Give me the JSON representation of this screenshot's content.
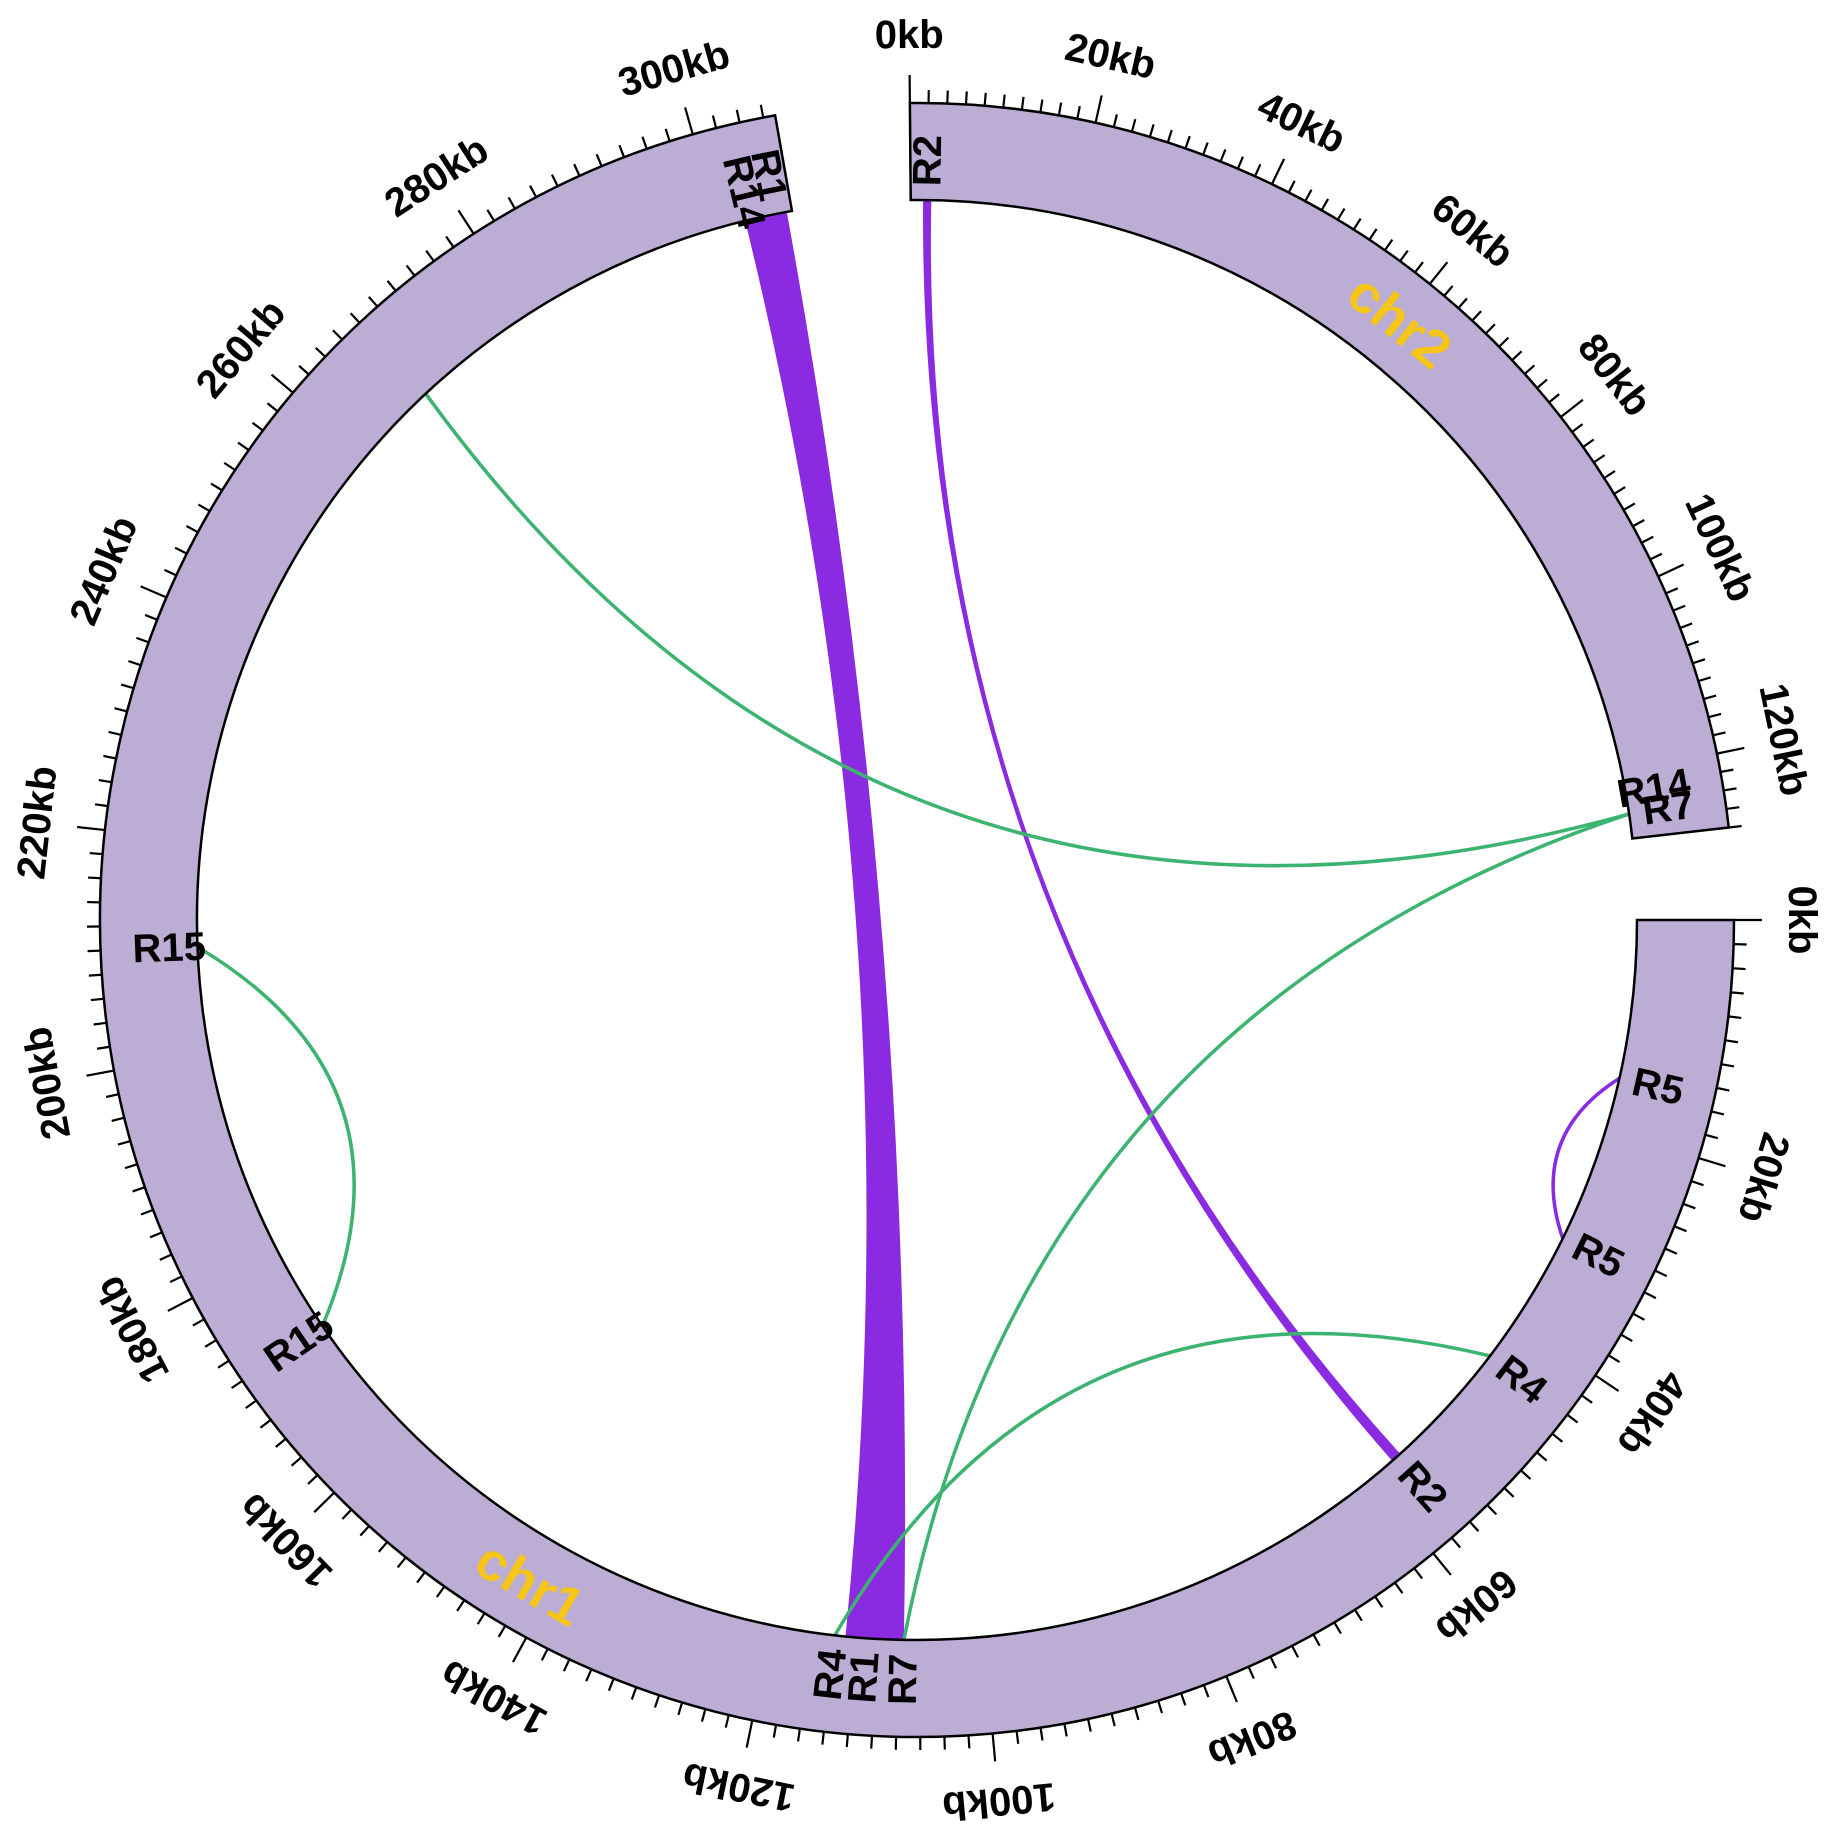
{
  "colors": {
    "segment_fill": "#bbadd3",
    "chrom_label": "#f5c518",
    "purple_link": "#8a2be2",
    "green_link": "#3cb371"
  },
  "chromosomes": [
    {
      "id": "chr1",
      "label": "chr1",
      "length_kb": 307,
      "ticks_kb": [
        0,
        20,
        40,
        60,
        80,
        100,
        120,
        140,
        160,
        180,
        200,
        220,
        240,
        260,
        280,
        300
      ]
    },
    {
      "id": "chr2",
      "label": "chr2",
      "length_kb": 128,
      "ticks_kb": [
        0,
        20,
        40,
        60,
        80,
        100,
        120
      ]
    }
  ],
  "tick_suffix": "kb",
  "regions": [
    {
      "label": "R5",
      "chrom": "chr1",
      "pos_kb": 15
    },
    {
      "label": "R5",
      "chrom": "chr1",
      "pos_kb": 31
    },
    {
      "label": "R4",
      "chrom": "chr1",
      "pos_kb": 44
    },
    {
      "label": "R2",
      "chrom": "chr1",
      "pos_kb": 57
    },
    {
      "label": "R7",
      "chrom": "chr1",
      "pos_kb": 107.5
    },
    {
      "label": "R1",
      "chrom": "chr1",
      "pos_kb": 111
    },
    {
      "label": "R4",
      "chrom": "chr1",
      "pos_kb": 114
    },
    {
      "label": "R15",
      "chrom": "chr1",
      "pos_kb": 172
    },
    {
      "label": "R15",
      "chrom": "chr1",
      "pos_kb": 210
    },
    {
      "label": "R14",
      "chrom": "chr1",
      "pos_kb": 303
    },
    {
      "label": "R1",
      "chrom": "chr1",
      "pos_kb": 305.5
    },
    {
      "label": "R2",
      "chrom": "chr2",
      "pos_kb": 2
    },
    {
      "label": "R14",
      "chrom": "chr2",
      "pos_kb": 122.5
    },
    {
      "label": "R7",
      "chrom": "chr2",
      "pos_kb": 125
    }
  ],
  "links": [
    {
      "type": "ribbon",
      "color": "purple",
      "a": {
        "chrom": "chr1",
        "start_kb": 302.5,
        "end_kb": 306.5
      },
      "b": {
        "chrom": "chr1",
        "start_kb": 107.5,
        "end_kb": 113
      }
    },
    {
      "type": "ribbon",
      "color": "purple",
      "a": {
        "chrom": "chr2",
        "start_kb": 1.5,
        "end_kb": 2.5
      },
      "b": {
        "chrom": "chr1",
        "start_kb": 56.5,
        "end_kb": 57.5
      }
    },
    {
      "type": "line",
      "color": "purple",
      "a": {
        "chrom": "chr1",
        "pos_kb": 15
      },
      "b": {
        "chrom": "chr1",
        "pos_kb": 31
      },
      "ctrl": 0.9
    },
    {
      "type": "line",
      "color": "green",
      "a": {
        "chrom": "chr1",
        "pos_kb": 44
      },
      "b": {
        "chrom": "chr1",
        "pos_kb": 114
      },
      "ctrl": 0.5
    },
    {
      "type": "line",
      "color": "green",
      "a": {
        "chrom": "chr1",
        "pos_kb": 172
      },
      "b": {
        "chrom": "chr1",
        "pos_kb": 210
      },
      "ctrl": 0.72
    },
    {
      "type": "line",
      "color": "green",
      "a": {
        "chrom": "chr2",
        "pos_kb": 125
      },
      "b": {
        "chrom": "chr1",
        "pos_kb": 107.5
      },
      "ctrl": 0.2
    },
    {
      "type": "line",
      "color": "green",
      "a": {
        "chrom": "chr2",
        "pos_kb": 125
      },
      "b": {
        "chrom": "chr1",
        "pos_kb": 268
      },
      "ctrl": 0.15
    }
  ]
}
